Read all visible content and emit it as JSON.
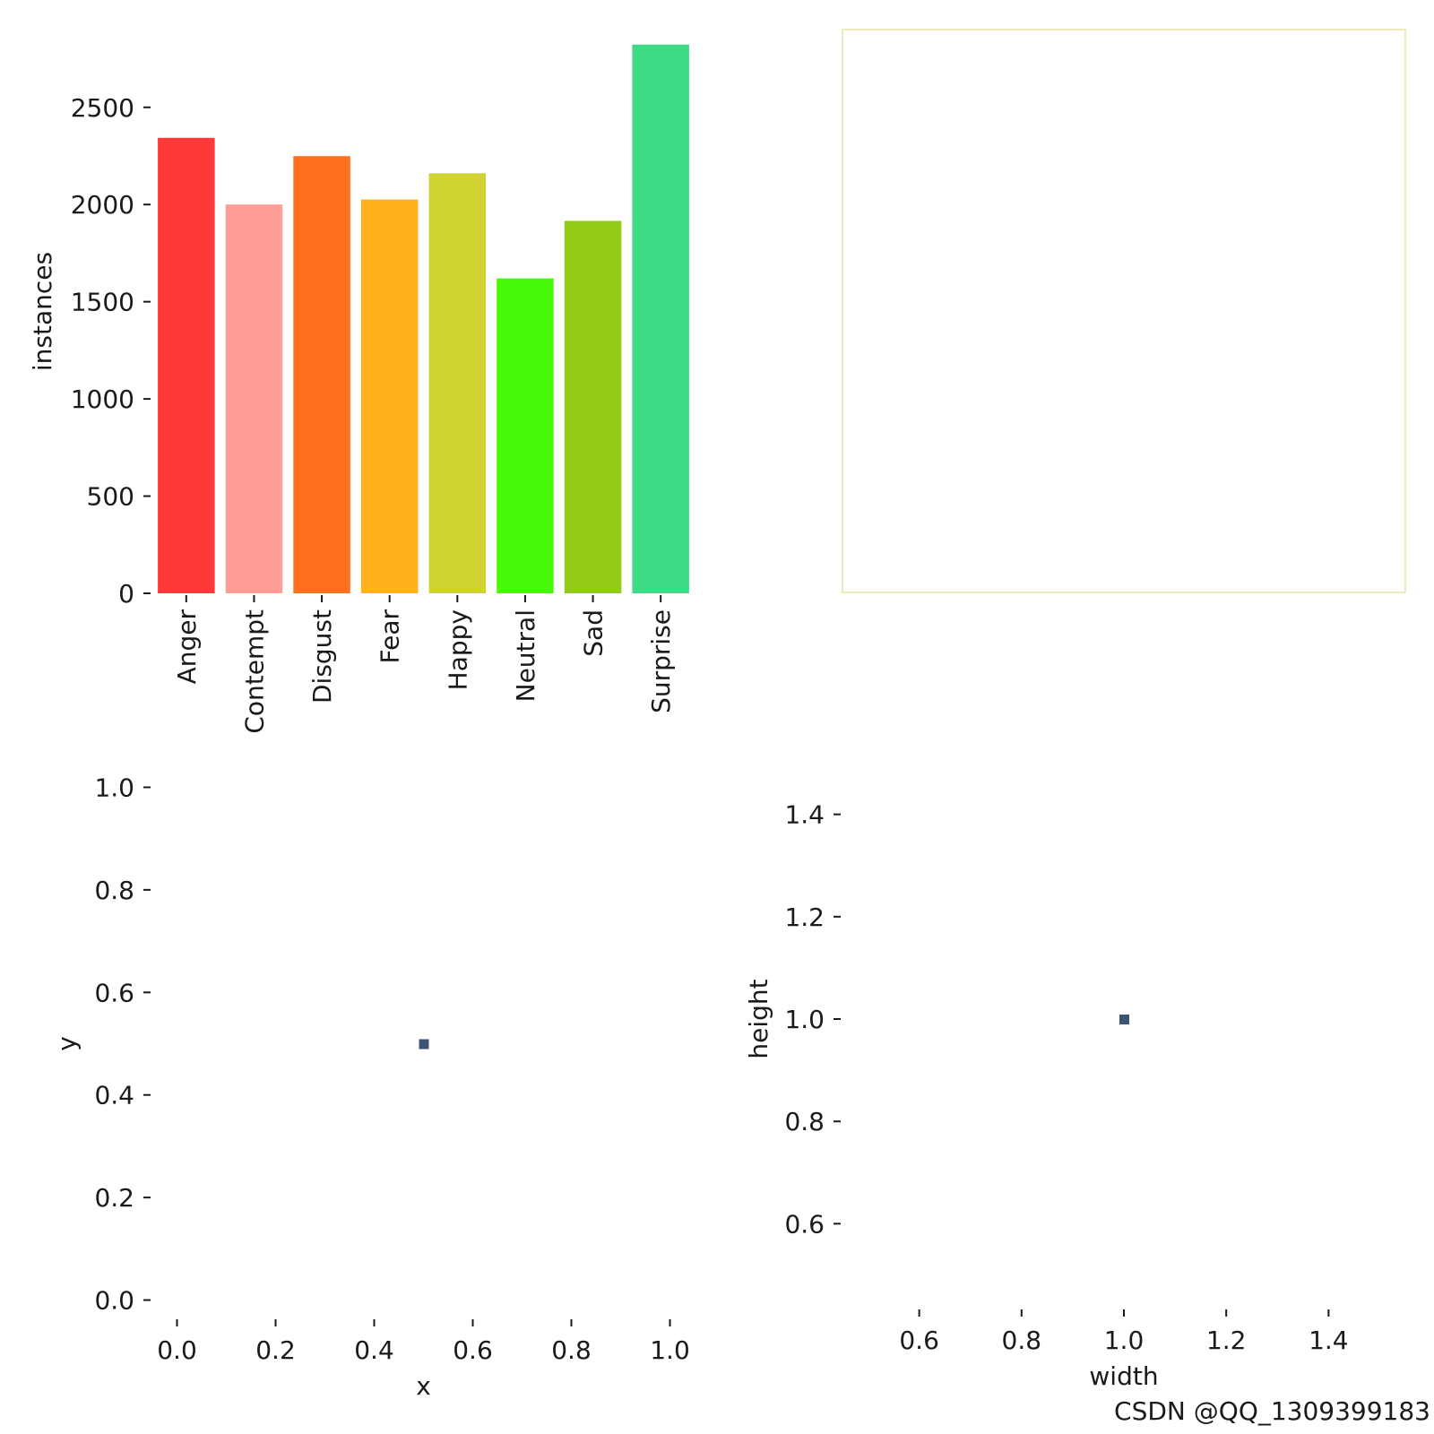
{
  "watermark": "CSDN @QQ_1309399183",
  "chart_data": [
    {
      "type": "bar",
      "ylabel": "instances",
      "xlabel": "",
      "categories": [
        "Anger",
        "Contempt",
        "Disgust",
        "Fear",
        "Happy",
        "Neutral",
        "Sad",
        "Surprise"
      ],
      "values": [
        2343,
        2000,
        2249,
        2026,
        2161,
        1620,
        1916,
        2823
      ],
      "colors": [
        "#ff3838",
        "#ff9d97",
        "#ff701f",
        "#ffb21d",
        "#cfd231",
        "#48f90a",
        "#92cc17",
        "#3ddb86"
      ],
      "ylim": [
        0,
        2900
      ],
      "yticks": [
        0,
        500,
        1000,
        1500,
        2000,
        2500
      ],
      "ytick_labels": [
        "0",
        "500",
        "1000",
        "1500",
        "2000",
        "2500"
      ],
      "grid": false
    },
    {
      "type": "empty",
      "border_color": "#e6e2a3"
    },
    {
      "type": "scatter",
      "xlabel": "x",
      "ylabel": "y",
      "points": [
        {
          "x": 0.5,
          "y": 0.5
        }
      ],
      "marker_color": "#3d5473",
      "xlim": [
        -0.05,
        1.05
      ],
      "ylim": [
        -0.02,
        1.02
      ],
      "xticks": [
        0.0,
        0.2,
        0.4,
        0.6,
        0.8,
        1.0
      ],
      "xtick_labels": [
        "0.0",
        "0.2",
        "0.4",
        "0.6",
        "0.8",
        "1.0"
      ],
      "yticks": [
        0.0,
        0.2,
        0.4,
        0.6,
        0.8,
        1.0
      ],
      "ytick_labels": [
        "0.0",
        "0.2",
        "0.4",
        "0.6",
        "0.8",
        "1.0"
      ]
    },
    {
      "type": "scatter",
      "xlabel": "width",
      "ylabel": "height",
      "points": [
        {
          "x": 1.0,
          "y": 1.0
        }
      ],
      "marker_color": "#3d5473",
      "xlim": [
        0.45,
        1.55
      ],
      "ylim": [
        0.45,
        1.55
      ],
      "xticks": [
        0.6,
        0.8,
        1.0,
        1.2,
        1.4
      ],
      "xtick_labels": [
        "0.6",
        "0.8",
        "1.0",
        "1.2",
        "1.4"
      ],
      "yticks": [
        0.6,
        0.8,
        1.0,
        1.2,
        1.4
      ],
      "ytick_labels": [
        "0.6",
        "0.8",
        "1.0",
        "1.2",
        "1.4"
      ]
    }
  ]
}
